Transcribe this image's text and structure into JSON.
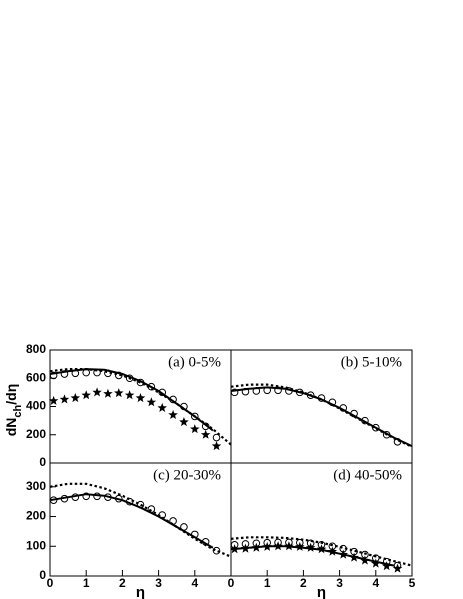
{
  "chart_data": [
    {
      "type": "line",
      "label": "(a) 0-5%",
      "xlim": [
        0,
        5
      ],
      "ylim": [
        0,
        800
      ],
      "yticks": [
        0,
        200,
        400,
        600,
        800
      ],
      "series": [
        {
          "style": "circle",
          "color": "#000000",
          "x": [
            0.1,
            0.4,
            0.7,
            1.0,
            1.3,
            1.6,
            1.9,
            2.2,
            2.5,
            2.8,
            3.1,
            3.4,
            3.7,
            4.0,
            4.3,
            4.6
          ],
          "values": [
            620,
            630,
            635,
            640,
            640,
            635,
            620,
            600,
            570,
            540,
            500,
            450,
            400,
            330,
            260,
            180
          ]
        },
        {
          "style": "star",
          "color": "#000000",
          "x": [
            0.1,
            0.4,
            0.7,
            1.0,
            1.3,
            1.6,
            1.9,
            2.2,
            2.5,
            2.8,
            3.1,
            3.4,
            3.7,
            4.0,
            4.3,
            4.6
          ],
          "values": [
            440,
            450,
            460,
            480,
            500,
            490,
            495,
            480,
            460,
            430,
            390,
            340,
            290,
            240,
            200,
            120
          ]
        },
        {
          "style": "solid",
          "color": "#000000",
          "x": [
            0,
            0.5,
            1,
            1.5,
            2,
            2.5,
            3,
            3.5,
            4,
            4.5
          ],
          "values": [
            630,
            650,
            665,
            660,
            630,
            580,
            510,
            420,
            330,
            230
          ]
        },
        {
          "style": "dotted",
          "color": "#000000",
          "x": [
            0,
            0.5,
            1,
            1.5,
            2,
            2.5,
            3,
            3.5,
            4,
            4.5,
            5
          ],
          "values": [
            650,
            665,
            665,
            650,
            620,
            570,
            500,
            420,
            330,
            240,
            130
          ]
        }
      ]
    },
    {
      "type": "line",
      "label": "(b) 5-10%",
      "xlim": [
        0,
        5
      ],
      "ylim": [
        0,
        800
      ],
      "series": [
        {
          "style": "circle",
          "color": "#000000",
          "x": [
            0.1,
            0.4,
            0.7,
            1.0,
            1.3,
            1.6,
            1.9,
            2.2,
            2.5,
            2.8,
            3.1,
            3.4,
            3.7,
            4.0,
            4.3,
            4.6
          ],
          "values": [
            500,
            505,
            510,
            515,
            515,
            510,
            500,
            480,
            460,
            430,
            390,
            350,
            300,
            250,
            200,
            150
          ]
        },
        {
          "style": "solid",
          "color": "#000000",
          "x": [
            0,
            0.5,
            1,
            1.5,
            2,
            2.5,
            3,
            3.5,
            4,
            4.5,
            5
          ],
          "values": [
            510,
            525,
            535,
            525,
            495,
            450,
            390,
            320,
            250,
            180,
            120
          ]
        },
        {
          "style": "dotted",
          "color": "#000000",
          "x": [
            0,
            0.5,
            1,
            1.5,
            2,
            2.5,
            3,
            3.5,
            4,
            4.5,
            5
          ],
          "values": [
            540,
            555,
            555,
            535,
            500,
            450,
            385,
            315,
            245,
            175,
            115
          ]
        }
      ]
    },
    {
      "type": "line",
      "label": "(c) 20-30%",
      "xlim": [
        0,
        5
      ],
      "ylim": [
        0,
        380
      ],
      "yticks": [
        0,
        100,
        200,
        300
      ],
      "xticks": [
        0,
        1,
        2,
        3,
        4
      ],
      "xlabel": "η",
      "ylabel": [
        "dN",
        "ch",
        "/dη"
      ],
      "series": [
        {
          "style": "circle",
          "color": "#000000",
          "x": [
            0.1,
            0.4,
            0.7,
            1.0,
            1.3,
            1.6,
            1.9,
            2.2,
            2.5,
            2.8,
            3.1,
            3.4,
            3.7,
            4.0,
            4.3,
            4.6
          ],
          "values": [
            255,
            260,
            265,
            268,
            268,
            265,
            260,
            250,
            240,
            225,
            205,
            185,
            165,
            140,
            115,
            85
          ]
        },
        {
          "style": "solid",
          "color": "#000000",
          "x": [
            0,
            0.5,
            1,
            1.5,
            2,
            2.5,
            3,
            3.5,
            4,
            4.5
          ],
          "values": [
            255,
            265,
            275,
            270,
            255,
            230,
            200,
            165,
            130,
            95
          ]
        },
        {
          "style": "dotted",
          "color": "#000000",
          "x": [
            0,
            0.5,
            1,
            1.5,
            2,
            2.5,
            3,
            3.5,
            4,
            4.5,
            5
          ],
          "values": [
            300,
            310,
            310,
            295,
            270,
            240,
            205,
            165,
            125,
            90,
            65
          ]
        }
      ]
    },
    {
      "type": "line",
      "label": "(d) 40-50%",
      "xlim": [
        0,
        5
      ],
      "ylim": [
        0,
        380
      ],
      "xticks": [
        0,
        1,
        2,
        3,
        4,
        5
      ],
      "xlabel": "η",
      "series": [
        {
          "style": "circle",
          "color": "#000000",
          "x": [
            0.1,
            0.4,
            0.7,
            1.0,
            1.3,
            1.6,
            1.9,
            2.2,
            2.5,
            2.8,
            3.1,
            3.4,
            3.7,
            4.0,
            4.3,
            4.6
          ],
          "values": [
            105,
            108,
            110,
            112,
            113,
            113,
            112,
            110,
            105,
            100,
            92,
            82,
            72,
            60,
            48,
            35
          ]
        },
        {
          "style": "star",
          "color": "#000000",
          "x": [
            0.1,
            0.4,
            0.7,
            1.0,
            1.3,
            1.6,
            1.9,
            2.2,
            2.5,
            2.8,
            3.1,
            3.4,
            3.7,
            4.0,
            4.3,
            4.6
          ],
          "values": [
            90,
            92,
            95,
            98,
            100,
            100,
            98,
            95,
            90,
            82,
            72,
            62,
            52,
            42,
            33,
            25
          ]
        },
        {
          "style": "solid",
          "color": "#000000",
          "x": [
            0,
            0.5,
            1,
            1.5,
            2,
            2.5,
            3,
            3.5,
            4,
            4.5
          ],
          "values": [
            90,
            95,
            100,
            100,
            95,
            88,
            75,
            62,
            48,
            35
          ]
        },
        {
          "style": "dotted",
          "color": "#000000",
          "x": [
            0,
            0.5,
            1,
            1.5,
            2,
            2.5,
            3,
            3.5,
            4,
            4.5,
            5
          ],
          "values": [
            125,
            130,
            130,
            128,
            122,
            112,
            98,
            82,
            66,
            50,
            35
          ]
        }
      ]
    }
  ]
}
